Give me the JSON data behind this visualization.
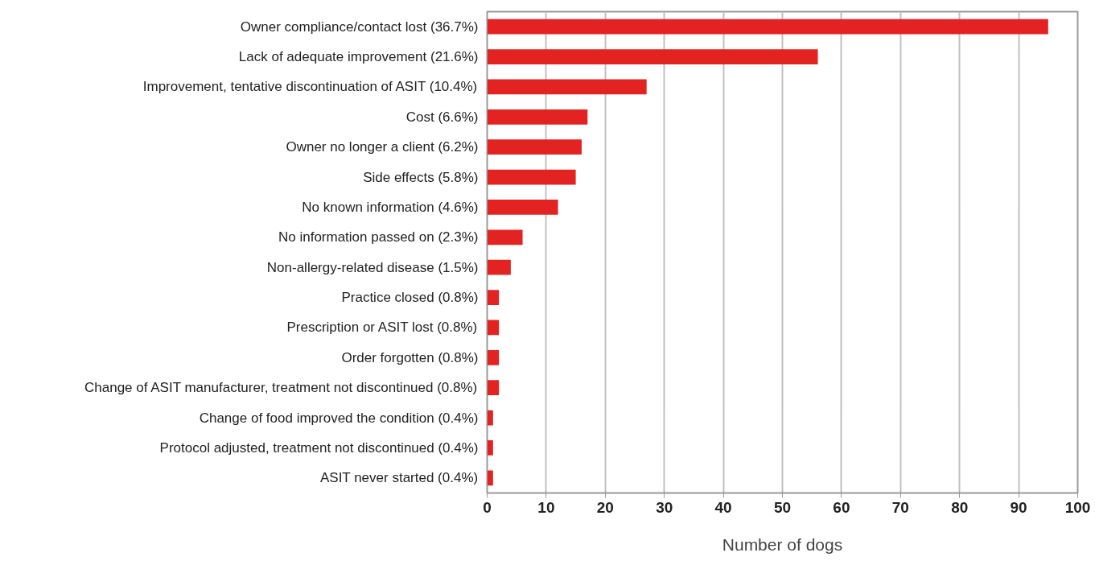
{
  "chart_data": {
    "type": "bar",
    "orientation": "horizontal",
    "xlabel": "Number of dogs",
    "categories": [
      "Owner compliance/contact lost (36.7%)",
      "Lack of adequate improvement (21.6%)",
      "Improvement, tentative discontinuation of ASIT (10.4%)",
      "Cost (6.6%)",
      "Owner no longer a client (6.2%)",
      "Side effects (5.8%)",
      "No known information (4.6%)",
      "No information passed on (2.3%)",
      "Non-allergy-related disease (1.5%)",
      "Practice closed (0.8%)",
      "Prescription or ASIT lost (0.8%)",
      "Order forgotten (0.8%)",
      "Change of ASIT manufacturer, treatment not discontinued (0.8%)",
      "Change of food improved the condition (0.4%)",
      "Protocol adjusted, treatment not discontinued (0.4%)",
      "ASIT never started (0.4%)"
    ],
    "values": [
      95,
      56,
      27,
      17,
      16,
      15,
      12,
      6,
      4,
      2,
      2,
      2,
      2,
      1,
      1,
      1
    ],
    "color": "#e32322",
    "xlim": [
      0,
      100
    ],
    "xticks": [
      0,
      10,
      20,
      30,
      40,
      50,
      60,
      70,
      80,
      90,
      100
    ],
    "grid": "x"
  }
}
